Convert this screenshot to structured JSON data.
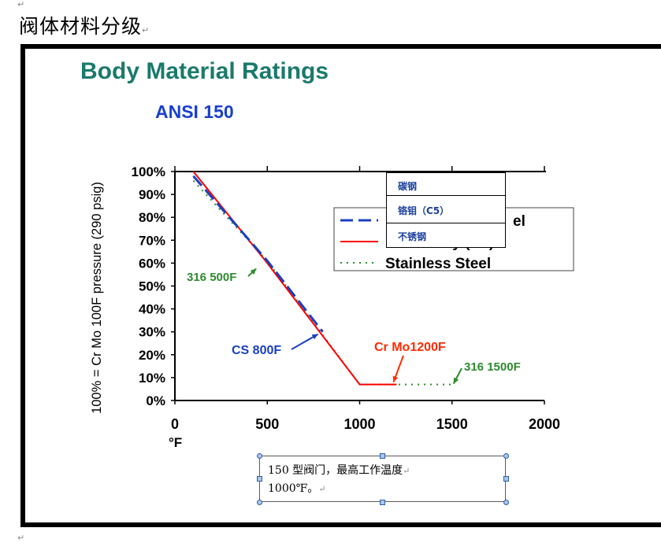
{
  "document": {
    "heading": "阀体材料分级",
    "paragraph_mark": "↵"
  },
  "chart_data": {
    "type": "line",
    "title": "Body Material Ratings",
    "subtitle": "ANSI 150",
    "ylabel": "100% = Cr Mo 100F pressure (290 psig)",
    "xlabel": "°F",
    "xlim": [
      0,
      2000
    ],
    "ylim": [
      0,
      100
    ],
    "x_ticks": [
      0,
      500,
      1000,
      1500,
      2000
    ],
    "x_tick_labels": [
      "0",
      "500",
      "1000",
      "1500",
      "2000"
    ],
    "y_ticks": [
      0,
      10,
      20,
      30,
      40,
      50,
      60,
      70,
      80,
      90,
      100
    ],
    "y_tick_labels": [
      "0%",
      "10%",
      "20%",
      "30%",
      "40%",
      "50%",
      "60%",
      "70%",
      "80%",
      "90%",
      "100%"
    ],
    "legend_position": "top-right",
    "series": [
      {
        "name": "Stainless Steel",
        "color": "#2e8b2e",
        "dash": "dotted",
        "x": [
          100,
          500,
          1000,
          1500
        ],
        "y": [
          96,
          61,
          7,
          7
        ]
      },
      {
        "name": "Chrome-Moly (C5)",
        "color": "#ff0000",
        "dash": "solid",
        "x": [
          100,
          500,
          1000,
          1200
        ],
        "y": [
          100,
          60,
          7,
          7
        ]
      },
      {
        "name": "Carbon Steel",
        "color": "#1a3fc0",
        "dash": "dashed",
        "x": [
          100,
          500,
          800
        ],
        "y": [
          98,
          61,
          30
        ]
      }
    ],
    "annotations": [
      {
        "text": "316 500F",
        "color": "#2e8b2e",
        "x": 500,
        "y": 61
      },
      {
        "text": "CS 800F",
        "color": "#1a3fc0",
        "x": 800,
        "y": 30
      },
      {
        "text": "Cr Mo1200F",
        "color": "#ff2b00",
        "x": 1200,
        "y": 7
      },
      {
        "text": "316 1500F",
        "color": "#2e8b2e",
        "x": 1500,
        "y": 7
      }
    ],
    "legend_visible_text": [
      "el",
      "ly (C5)",
      "Stainless Steel"
    ]
  },
  "overlay_labels": [
    "碳钢",
    "铬钼（C5）",
    "不锈钢"
  ],
  "note": {
    "line1": "150 型阀门，最高工作温度",
    "line2": "1000℉。"
  },
  "colors": {
    "title": "#1a7a6b",
    "subtitle": "#1a3fd0"
  }
}
